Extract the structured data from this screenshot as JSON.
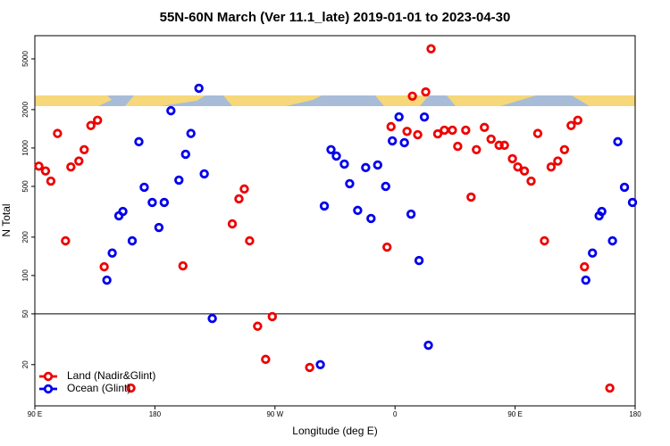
{
  "chart_data": {
    "type": "scatter",
    "title": "55N-60N March (Ver 11.1_late)   2019-01-01 to 2023-04-30",
    "x_label": "Longitude (deg E)",
    "y_label": "N Total",
    "log_y": true,
    "legend": "lower left",
    "hline": 50,
    "xlim": [
      90,
      540
    ],
    "xticks": [
      {
        "value": 90,
        "label": "90 E"
      },
      180,
      {
        "value": 270,
        "label": "90 W"
      },
      {
        "value": 360,
        "label": "0"
      },
      {
        "value": 450,
        "label": "90 E"
      },
      {
        "value": 540,
        "label": "180"
      }
    ],
    "ylim": [
      9.5,
      7600
    ],
    "yticks": [
      20,
      50,
      100,
      200,
      500,
      1000,
      2000,
      5000
    ],
    "series": [
      {
        "name": "Land (Nadir&Glint)",
        "color": "#ee0000",
        "x": [
          93,
          98,
          102,
          107,
          113,
          117,
          123,
          127,
          132,
          137,
          142,
          162,
          201,
          238,
          243,
          247,
          251,
          257,
          263,
          268,
          296,
          354,
          357,
          369,
          373,
          377,
          383,
          387,
          392,
          397,
          403,
          407,
          413,
          417,
          421,
          427,
          432,
          438,
          442,
          448,
          452,
          457,
          462,
          467,
          472,
          477,
          482,
          487,
          492,
          497,
          502,
          521
        ],
        "values": [
          720,
          660,
          550,
          1300,
          187,
          710,
          790,
          970,
          1500,
          1650,
          117,
          13.1,
          119,
          254,
          399,
          477,
          187,
          40,
          22,
          47.6,
          19,
          167,
          1470,
          1350,
          2550,
          1270,
          2750,
          6000,
          1290,
          1380,
          1380,
          1030,
          1380,
          412,
          970,
          1450,
          1175,
          1050,
          1050,
          824,
          710,
          660,
          550,
          1300,
          187,
          710,
          790,
          970,
          1500,
          1650,
          117,
          13.1
        ]
      },
      {
        "name": "Ocean (Glint)",
        "color": "#0000ee",
        "x": [
          144,
          148,
          153,
          156,
          163,
          168,
          172,
          178,
          183,
          187,
          192,
          198,
          203,
          207,
          213,
          217,
          223,
          304,
          307,
          312,
          316,
          322,
          326,
          332,
          338,
          342,
          347,
          353,
          358,
          363,
          367,
          372,
          378,
          382,
          385,
          503,
          508,
          513,
          515,
          523,
          527,
          532,
          538
        ],
        "values": [
          92,
          150,
          294,
          318,
          187,
          1120,
          492,
          374,
          238,
          374,
          1960,
          560,
          893,
          1300,
          2940,
          627,
          46,
          20,
          351,
          970,
          865,
          748,
          525,
          324,
          702,
          280,
          736,
          500,
          1137,
          1754,
          1101,
          303,
          131,
          1750,
          28.4,
          92,
          150,
          294,
          318,
          187,
          1120,
          492,
          374
        ]
      }
    ]
  }
}
